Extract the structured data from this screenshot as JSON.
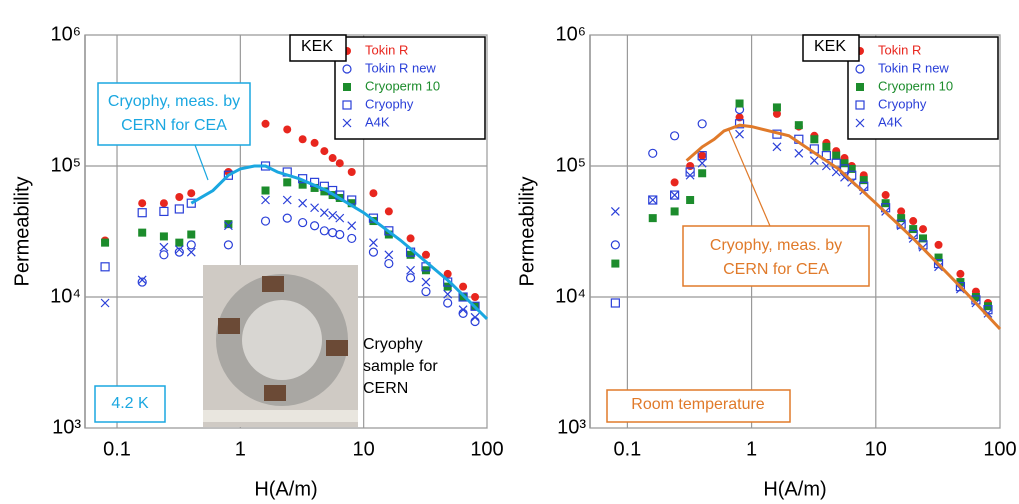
{
  "chart_data": [
    {
      "type": "scatter",
      "x_label": "H(A/m)",
      "y_label": "Permeability",
      "log_x": true,
      "log_y": true,
      "grid": true,
      "legend": "upper right",
      "xlim": [
        0.055,
        100
      ],
      "ylim": [
        1000,
        1000000
      ],
      "xticks": [
        0.1,
        1,
        10,
        100
      ],
      "yticks": [
        {
          "value": 1000,
          "label": "10³"
        },
        {
          "value": 10000,
          "label": "10⁴"
        },
        {
          "value": 100000,
          "label": "10⁵"
        },
        {
          "value": 1000000,
          "label": "10⁶"
        }
      ],
      "annotations": [
        [
          "KEK"
        ],
        [
          "Cryophy, meas. by",
          "CERN for CEA"
        ],
        [
          "4.2 K"
        ],
        [
          "Cryophy",
          "sample for",
          "CERN"
        ]
      ],
      "series": [
        {
          "name": "Tokin R",
          "color": "#e8261e",
          "marker": "circle-filled",
          "x": [
            0.08,
            0.16,
            0.24,
            0.32,
            0.4,
            0.8,
            1.6,
            2.4,
            3.2,
            4,
            4.8,
            5.6,
            6.4,
            8,
            12,
            16,
            24,
            32,
            48,
            64,
            80
          ],
          "values": [
            27000,
            52000,
            52000,
            58000,
            62000,
            90000,
            210000,
            190000,
            160000,
            150000,
            130000,
            115000,
            105000,
            90000,
            62000,
            45000,
            28000,
            21000,
            15000,
            12000,
            10000
          ]
        },
        {
          "name": "Tokin R new",
          "color": "#2a3fd8",
          "marker": "circle-open",
          "x": [
            0.16,
            0.24,
            0.32,
            0.4,
            0.8,
            1.6,
            2.4,
            3.2,
            4,
            4.8,
            5.6,
            6.4,
            8,
            12,
            16,
            24,
            32,
            48,
            64,
            80
          ],
          "values": [
            13000,
            21000,
            22000,
            25000,
            25000,
            38000,
            40000,
            37000,
            35000,
            32000,
            31000,
            30000,
            28000,
            22000,
            18000,
            14000,
            11000,
            9000,
            7500,
            6500
          ]
        },
        {
          "name": "Cryoperm 10",
          "color": "#1c8c2c",
          "marker": "square-filled",
          "x": [
            0.08,
            0.16,
            0.24,
            0.32,
            0.4,
            0.8,
            1.6,
            2.4,
            3.2,
            4,
            4.8,
            5.6,
            6.4,
            8,
            12,
            16,
            24,
            32,
            48,
            64,
            80
          ],
          "values": [
            26000,
            31000,
            29000,
            26000,
            30000,
            36000,
            65000,
            75000,
            72000,
            68000,
            64000,
            60000,
            57000,
            52000,
            38000,
            30000,
            21000,
            16000,
            12000,
            10000,
            8500
          ]
        },
        {
          "name": "Cryophy",
          "color": "#2a3fd8",
          "marker": "square-open",
          "x": [
            0.08,
            0.16,
            0.24,
            0.32,
            0.4,
            0.8,
            1.6,
            2.4,
            3.2,
            4,
            4.8,
            5.6,
            6.4,
            8,
            12,
            16,
            24,
            32,
            48,
            64,
            80
          ],
          "values": [
            17000,
            44000,
            45000,
            47000,
            52000,
            85000,
            100000,
            90000,
            80000,
            75000,
            70000,
            65000,
            60000,
            55000,
            40000,
            32000,
            22000,
            17000,
            13000,
            10000,
            8500
          ]
        },
        {
          "name": "A4K",
          "color": "#2a3fd8",
          "marker": "x",
          "x": [
            0.08,
            0.16,
            0.24,
            0.32,
            0.4,
            0.8,
            1.6,
            2.4,
            3.2,
            4,
            4.8,
            5.6,
            6.4,
            8,
            12,
            16,
            24,
            32,
            48,
            64,
            80
          ],
          "values": [
            9000,
            13500,
            24000,
            23000,
            22000,
            35000,
            55000,
            55000,
            52000,
            48000,
            44000,
            42000,
            40000,
            35000,
            26000,
            21000,
            16000,
            13000,
            10500,
            8000,
            7000
          ]
        },
        {
          "color": "#1aa7e0",
          "marker": "line",
          "x": [
            0.4,
            0.6,
            0.8,
            1,
            1.3,
            1.6,
            2,
            3,
            5,
            10,
            20,
            50,
            100
          ],
          "values": [
            52000,
            65000,
            85000,
            95000,
            100000,
            100000,
            90000,
            80000,
            65000,
            44000,
            27000,
            13000,
            6800
          ]
        }
      ]
    },
    {
      "type": "scatter",
      "x_label": "H(A/m)",
      "y_label": "Permeability",
      "log_x": true,
      "log_y": true,
      "grid": true,
      "legend": "upper right",
      "xlim": [
        0.05,
        100
      ],
      "ylim": [
        1000,
        1000000
      ],
      "xticks": [
        0.1,
        1,
        10,
        100
      ],
      "yticks": [
        {
          "value": 1000,
          "label": "10³"
        },
        {
          "value": 10000,
          "label": "10⁴"
        },
        {
          "value": 100000,
          "label": "10⁵"
        },
        {
          "value": 1000000,
          "label": "10⁶"
        }
      ],
      "annotations": [
        [
          "KEK"
        ],
        [
          "Cryophy, meas. by",
          "CERN for CEA"
        ],
        [
          "Room temperature"
        ]
      ],
      "series": [
        {
          "name": "Tokin R",
          "color": "#e8261e",
          "marker": "circle-filled",
          "x": [
            0.24,
            0.32,
            0.4,
            0.8,
            1.6,
            2.4,
            3.2,
            4,
            4.8,
            5.6,
            6.4,
            8,
            12,
            16,
            20,
            24,
            32,
            48,
            64,
            80
          ],
          "values": [
            75000,
            100000,
            120000,
            235000,
            250000,
            200000,
            170000,
            150000,
            130000,
            115000,
            100000,
            85000,
            60000,
            45000,
            38000,
            33000,
            25000,
            15000,
            11000,
            9000
          ]
        },
        {
          "name": "Tokin R new",
          "color": "#2a3fd8",
          "marker": "circle-open",
          "x": [
            0.08,
            0.16,
            0.24,
            0.4,
            0.8
          ],
          "values": [
            25000,
            125000,
            170000,
            210000,
            270000
          ]
        },
        {
          "name": "Cryoperm 10",
          "color": "#1c8c2c",
          "marker": "square-filled",
          "x": [
            0.08,
            0.16,
            0.24,
            0.32,
            0.4,
            0.8,
            1.6,
            2.4,
            3.2,
            4,
            4.8,
            5.6,
            6.4,
            8,
            12,
            16,
            20,
            24,
            32,
            48,
            64,
            80
          ],
          "values": [
            18000,
            40000,
            45000,
            55000,
            88000,
            300000,
            280000,
            205000,
            160000,
            140000,
            120000,
            105000,
            95000,
            78000,
            52000,
            40000,
            33000,
            28000,
            20000,
            13000,
            10000,
            8500
          ]
        },
        {
          "name": "Cryophy",
          "color": "#2a3fd8",
          "marker": "square-open",
          "x": [
            0.08,
            0.16,
            0.24,
            0.32,
            0.4,
            0.8,
            1.6,
            2.4,
            3.2,
            4,
            4.8,
            5.6,
            6.4,
            8,
            12,
            16,
            20,
            24,
            32,
            48,
            64,
            80
          ],
          "values": [
            9000,
            55000,
            60000,
            90000,
            120000,
            210000,
            175000,
            160000,
            135000,
            120000,
            105000,
            95000,
            85000,
            70000,
            48000,
            36000,
            30000,
            25000,
            18000,
            12000,
            9500,
            8000
          ]
        },
        {
          "name": "A4K",
          "color": "#2a3fd8",
          "marker": "x",
          "x": [
            0.08,
            0.16,
            0.24,
            0.32,
            0.4,
            0.8,
            1.6,
            2.4,
            3.2,
            4,
            4.8,
            5.6,
            6.4,
            8,
            12,
            16,
            20,
            24,
            32,
            48,
            64,
            80
          ],
          "values": [
            45000,
            55000,
            60000,
            85000,
            105000,
            175000,
            140000,
            125000,
            110000,
            100000,
            90000,
            82000,
            75000,
            65000,
            45000,
            35000,
            28000,
            24000,
            17000,
            11500,
            9000,
            7500
          ]
        },
        {
          "color": "#e07a2a",
          "marker": "line",
          "x": [
            0.3,
            0.4,
            0.5,
            0.6,
            0.8,
            1,
            2,
            5,
            10,
            20,
            50,
            100
          ],
          "values": [
            110000,
            140000,
            160000,
            185000,
            205000,
            200000,
            170000,
            95000,
            52000,
            28000,
            11500,
            5700
          ]
        }
      ]
    }
  ]
}
